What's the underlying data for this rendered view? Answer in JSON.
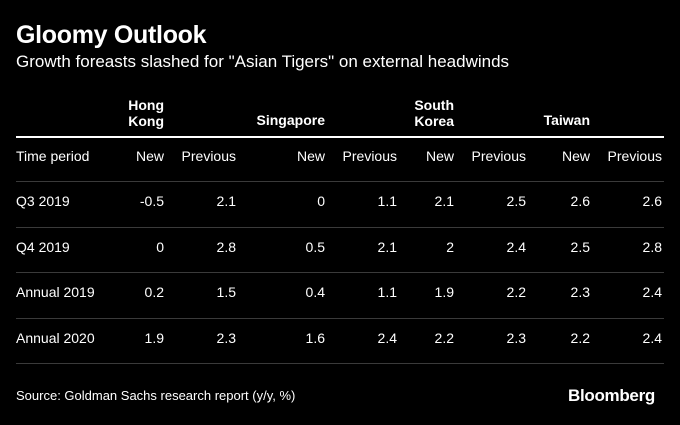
{
  "title": "Gloomy Outlook",
  "subtitle": "Growth foreasts slashed for \"Asian Tigers\" on external headwinds",
  "source": "Source: Goldman Sachs research report (y/y, %)",
  "brand": "Bloomberg",
  "chart_data": {
    "type": "table",
    "title": "Gloomy Outlook",
    "subtitle": "Growth foreasts slashed for \"Asian Tigers\" on external headwinds",
    "groups": [
      "Hong\nKong",
      "Singapore",
      "South\nKorea",
      "Taiwan"
    ],
    "columns": [
      "Time period",
      "New",
      "Previous",
      "New",
      "Previous",
      "New",
      "Previous",
      "New",
      "Previous"
    ],
    "rows": [
      [
        "Q3 2019",
        "-0.5",
        "2.1",
        "0",
        "1.1",
        "2.1",
        "2.5",
        "2.6",
        "2.6"
      ],
      [
        "Q4 2019",
        "0",
        "2.8",
        "0.5",
        "2.1",
        "2",
        "2.4",
        "2.5",
        "2.8"
      ],
      [
        "Annual 2019",
        "0.2",
        "1.5",
        "0.4",
        "1.1",
        "1.9",
        "2.2",
        "2.3",
        "2.4"
      ],
      [
        "Annual 2020",
        "1.9",
        "2.3",
        "1.6",
        "2.4",
        "2.2",
        "2.3",
        "2.2",
        "2.4"
      ]
    ]
  }
}
